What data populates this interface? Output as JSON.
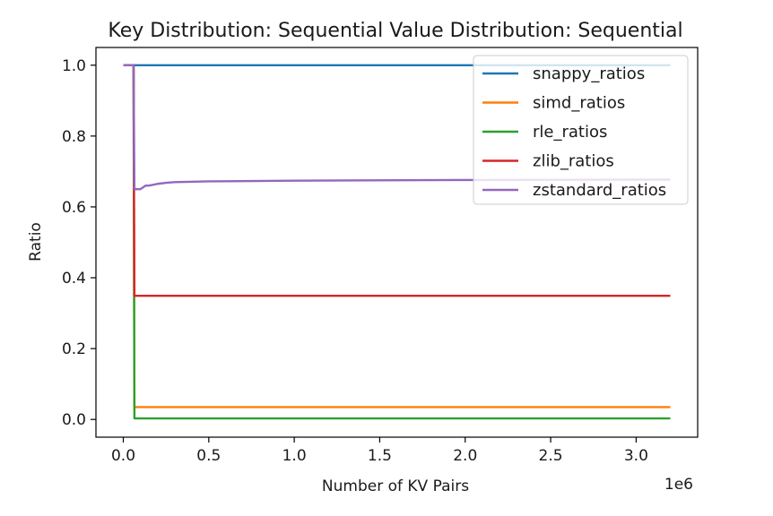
{
  "chart_data": {
    "type": "line",
    "title": "Key Distribution: Sequential Value Distribution: Sequential",
    "xlabel": "Number of KV Pairs",
    "ylabel": "Ratio",
    "x_offset_label": "1e6",
    "xlim": [
      -0.16,
      3.36
    ],
    "ylim": [
      -0.05,
      1.05
    ],
    "xticks": [
      0.0,
      0.5,
      1.0,
      1.5,
      2.0,
      2.5,
      3.0
    ],
    "xtick_labels": [
      "0.0",
      "0.5",
      "1.0",
      "1.5",
      "2.0",
      "2.5",
      "3.0"
    ],
    "yticks": [
      0.0,
      0.2,
      0.4,
      0.6,
      0.8,
      1.0
    ],
    "ytick_labels": [
      "0.0",
      "0.2",
      "0.4",
      "0.6",
      "0.8",
      "1.0"
    ],
    "grid": false,
    "legend_position": "top-right",
    "series": [
      {
        "name": "snappy_ratios",
        "color": "#1f77b4",
        "x": [
          0.0,
          0.06,
          3.2
        ],
        "y": [
          1.0,
          1.0,
          1.0
        ]
      },
      {
        "name": "simd_ratios",
        "color": "#ff7f0e",
        "x": [
          0.0,
          0.06,
          0.065,
          3.2
        ],
        "y": [
          1.0,
          1.0,
          0.035,
          0.035
        ]
      },
      {
        "name": "rle_ratios",
        "color": "#2ca02c",
        "x": [
          0.0,
          0.06,
          0.065,
          3.2
        ],
        "y": [
          1.0,
          1.0,
          0.003,
          0.003
        ]
      },
      {
        "name": "zlib_ratios",
        "color": "#d62728",
        "x": [
          0.0,
          0.06,
          0.065,
          3.2
        ],
        "y": [
          1.0,
          1.0,
          0.349,
          0.349
        ]
      },
      {
        "name": "zstandard_ratios",
        "color": "#9467bd",
        "x": [
          0.0,
          0.06,
          0.065,
          0.1,
          0.13,
          0.15,
          0.2,
          0.25,
          0.3,
          0.5,
          1.0,
          2.0,
          3.2
        ],
        "y": [
          1.0,
          1.0,
          0.65,
          0.65,
          0.66,
          0.66,
          0.665,
          0.668,
          0.67,
          0.672,
          0.674,
          0.676,
          0.677
        ]
      }
    ]
  }
}
